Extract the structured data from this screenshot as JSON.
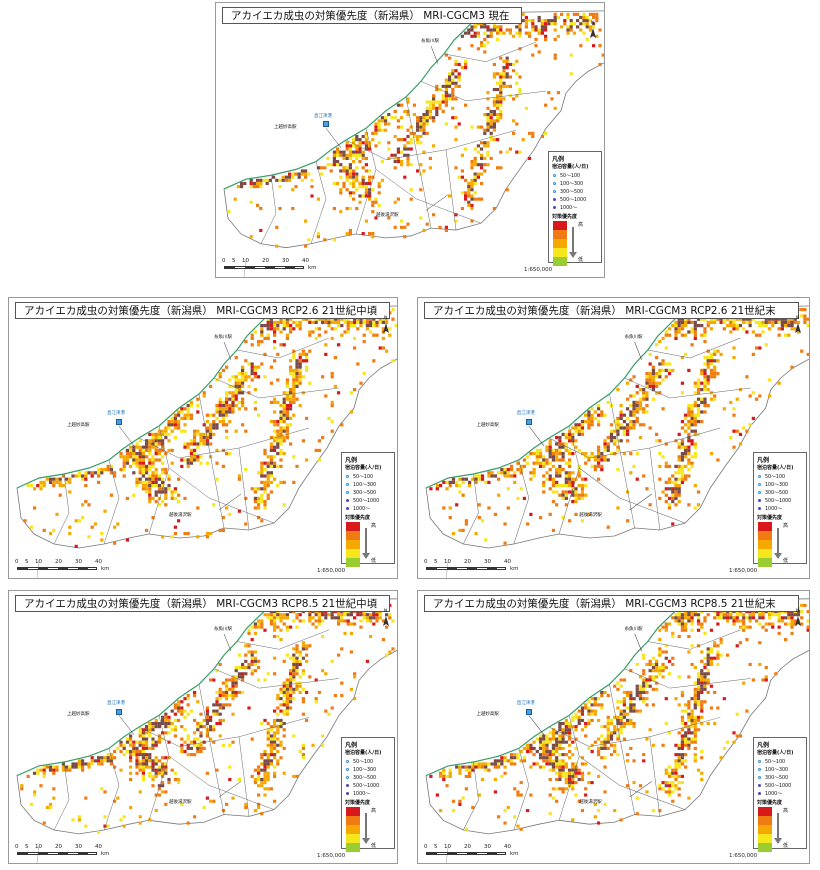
{
  "legend": {
    "heading": "凡例",
    "capacity_title": "宿泊容量(人/日)",
    "capacity_items": [
      "50～100",
      "100～300",
      "300～500",
      "500～1000",
      "1000～"
    ],
    "priority_title": "対策優先度",
    "high_label": "高",
    "low_label": "低",
    "priority_colors": [
      "#d7191c",
      "#f07b12",
      "#f5a800",
      "#f6e61c",
      "#9acd32"
    ]
  },
  "place_labels": {
    "port": "直江津港",
    "station_a": "上越妙高駅",
    "station_b": "糸魚川駅",
    "station_c": "越後湯沢駅"
  },
  "scale_label": "1:650,000",
  "scale_ticks": [
    "0",
    "5",
    "10",
    "20",
    "30",
    "40"
  ],
  "scale_unit": "km",
  "north_label": "N",
  "panels": [
    {
      "title": "アカイエカ成虫の対策優先度（新潟県） MRI-CGCM3 現在"
    },
    {
      "title": "アカイエカ成虫の対策優先度（新潟県） MRI-CGCM3 RCP2.6 21世紀中頃"
    },
    {
      "title": "アカイエカ成虫の対策優先度（新潟県） MRI-CGCM3 RCP2.6 21世紀末"
    },
    {
      "title": "アカイエカ成虫の対策優先度（新潟県） MRI-CGCM3 RCP8.5 21世紀中頃"
    },
    {
      "title": "アカイエカ成虫の対策優先度（新潟県） MRI-CGCM3 RCP8.5 21世紀末"
    }
  ]
}
